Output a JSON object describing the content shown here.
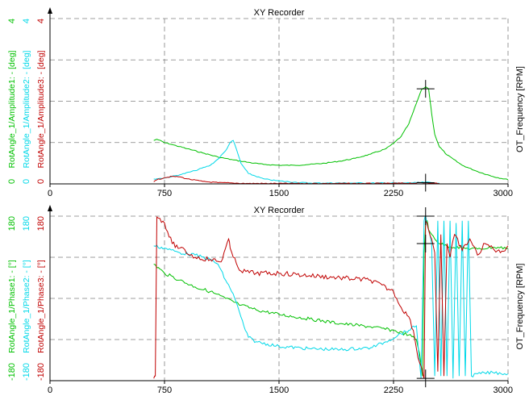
{
  "colors": {
    "grid": "#808080",
    "axis": "#000000",
    "series_green": "#00c000",
    "series_cyan": "#00d8e8",
    "series_red": "#c00000",
    "background": "#ffffff"
  },
  "chart_data": [
    {
      "type": "line",
      "title": "XY Recorder",
      "right_label": "OT_Frequency [RPM]",
      "xlim": [
        0,
        3000
      ],
      "ylim": [
        0,
        4
      ],
      "x_ticks": [
        "0",
        "750",
        "1500",
        "2250",
        "3000"
      ],
      "x_tick_values": [
        0,
        750,
        1500,
        2250,
        3000
      ],
      "y_axis_labels": [
        {
          "name": "RotAngle_1/Amplitude3: - [deg]",
          "color": "#c00000",
          "ticks": [
            "0",
            "4"
          ]
        },
        {
          "name": "RotAngle_1/Amplitude2: - [deg]",
          "color": "#00d8e8",
          "ticks": [
            "0",
            "4"
          ]
        },
        {
          "name": "RotAngle_1/Amplitude1: - [deg]",
          "color": "#00c000",
          "ticks": [
            "0",
            "4"
          ]
        }
      ],
      "grid": true,
      "cursor_markers": [
        {
          "x": 2460,
          "y": 2.3
        },
        {
          "x": 2460,
          "y": 0.03
        }
      ],
      "series": [
        {
          "color": "#00c000",
          "x": [
            680,
            700,
            750,
            800,
            900,
            1000,
            1100,
            1200,
            1300,
            1400,
            1500,
            1600,
            1700,
            1800,
            1900,
            2000,
            2100,
            2200,
            2250,
            2300,
            2350,
            2380,
            2410,
            2430,
            2440,
            2460,
            2480,
            2490,
            2500,
            2520,
            2550,
            2600,
            2700,
            2800,
            2900,
            3000
          ],
          "y": [
            1.05,
            1.08,
            1.0,
            0.95,
            0.85,
            0.75,
            0.65,
            0.58,
            0.52,
            0.47,
            0.45,
            0.45,
            0.47,
            0.5,
            0.55,
            0.62,
            0.72,
            0.85,
            0.98,
            1.15,
            1.45,
            1.75,
            2.05,
            2.25,
            2.3,
            2.35,
            2.3,
            2.0,
            1.7,
            1.2,
            0.9,
            0.7,
            0.45,
            0.3,
            0.18,
            0.1
          ]
        },
        {
          "color": "#00d8e8",
          "x": [
            680,
            750,
            850,
            950,
            1050,
            1100,
            1150,
            1180,
            1200,
            1220,
            1250,
            1300,
            1400,
            1500,
            1600,
            1700,
            2000,
            2300,
            2400,
            2460,
            2500,
            2550
          ],
          "y": [
            0.12,
            0.14,
            0.22,
            0.32,
            0.45,
            0.6,
            0.8,
            1.0,
            1.05,
            0.85,
            0.5,
            0.25,
            0.12,
            0.07,
            0.04,
            0.02,
            0.02,
            0.02,
            0.03,
            0.04,
            0.03,
            0.02
          ]
        },
        {
          "color": "#c00000",
          "x": [
            680,
            700,
            750,
            800,
            850,
            900,
            1000,
            1100,
            1200,
            1300,
            1500,
            1800,
            2200,
            2400,
            2460,
            2500,
            2550
          ],
          "y": [
            0.05,
            0.1,
            0.15,
            0.18,
            0.17,
            0.12,
            0.06,
            0.03,
            0.02,
            0.01,
            0.01,
            0.01,
            0.01,
            0.02,
            0.03,
            0.02,
            0.01
          ]
        }
      ]
    },
    {
      "type": "line",
      "title": "XY Recorder",
      "right_label": "OT_Frequency [RPM]",
      "xlim": [
        0,
        3000
      ],
      "ylim": [
        -180,
        180
      ],
      "x_ticks": [
        "0",
        "750",
        "1500",
        "2250",
        "3000"
      ],
      "x_tick_values": [
        0,
        750,
        1500,
        2250,
        3000
      ],
      "y_axis_labels": [
        {
          "name": "RotAngle_1/Phase3: - [°]",
          "color": "#c00000",
          "ticks": [
            "-180",
            "180"
          ]
        },
        {
          "name": "RotAngle_1/Phase2: - [°]",
          "color": "#00d8e8",
          "ticks": [
            "-180",
            "180"
          ]
        },
        {
          "name": "RotAngle_1/Phase1: - [°]",
          "color": "#00c000",
          "ticks": [
            "-180",
            "180"
          ]
        }
      ],
      "grid": true,
      "cursor_markers": [
        {
          "x": 2460,
          "y": 180
        },
        {
          "x": 2460,
          "y": 120
        },
        {
          "x": 2460,
          "y": -175
        }
      ],
      "series": [
        {
          "color": "#00c000",
          "x": [
            680,
            750,
            850,
            950,
            1050,
            1150,
            1250,
            1350,
            1500,
            1700,
            1900,
            2100,
            2250,
            2350,
            2400,
            2420,
            2440,
            2450,
            2460,
            2470,
            2480,
            2500,
            2550,
            2600,
            2700,
            2800,
            2900,
            3000
          ],
          "y": [
            75,
            55,
            40,
            25,
            15,
            0,
            -15,
            -25,
            -35,
            -45,
            -55,
            -62,
            -70,
            -80,
            -90,
            -120,
            -170,
            100,
            165,
            170,
            150,
            140,
            120,
            115,
            110,
            108,
            112,
            110
          ],
          "jitter": 4
        },
        {
          "color": "#00d8e8",
          "x": [
            680,
            750,
            850,
            950,
            1050,
            1100,
            1150,
            1200,
            1250,
            1280,
            1300,
            1350,
            1500,
            1700,
            1900,
            2100,
            2200,
            2280,
            2350,
            2400,
            2430,
            2450,
            2460,
            2480,
            2500,
            2520,
            2540,
            2560,
            2580,
            2600,
            2620,
            2640,
            2660,
            2680,
            2700,
            2720,
            2740,
            2760,
            2800,
            2900,
            3000
          ],
          "y": [
            115,
            110,
            100,
            95,
            85,
            75,
            40,
            10,
            -40,
            -70,
            -85,
            -95,
            -105,
            -110,
            -112,
            -108,
            -95,
            -80,
            -70,
            -60,
            -175,
            170,
            180,
            150,
            120,
            -170,
            170,
            -170,
            170,
            -170,
            170,
            -175,
            165,
            -170,
            170,
            -170,
            170,
            -170,
            -165,
            -162,
            -165
          ],
          "jitter": 4
        },
        {
          "color": "#c00000",
          "x": [
            680,
            690,
            700,
            720,
            750,
            800,
            850,
            950,
            1050,
            1120,
            1150,
            1170,
            1180,
            1200,
            1250,
            1350,
            1500,
            1700,
            1900,
            2100,
            2250,
            2300,
            2350,
            2380,
            2400,
            2420,
            2440,
            2450,
            2460,
            2470,
            2480,
            2500,
            2520,
            2540,
            2560,
            2580,
            2600,
            2620,
            2650,
            2700,
            2750,
            2800,
            2850,
            2900,
            2950,
            3000
          ],
          "y": [
            -175,
            -170,
            178,
            175,
            165,
            120,
            110,
            90,
            85,
            80,
            110,
            130,
            110,
            90,
            60,
            55,
            55,
            50,
            45,
            40,
            15,
            -20,
            -40,
            -70,
            -110,
            -140,
            -160,
            -175,
            170,
            165,
            150,
            130,
            100,
            -160,
            140,
            -170,
            120,
            90,
            140,
            105,
            130,
            95,
            120,
            110,
            100,
            115
          ],
          "jitter": 6
        }
      ]
    }
  ]
}
